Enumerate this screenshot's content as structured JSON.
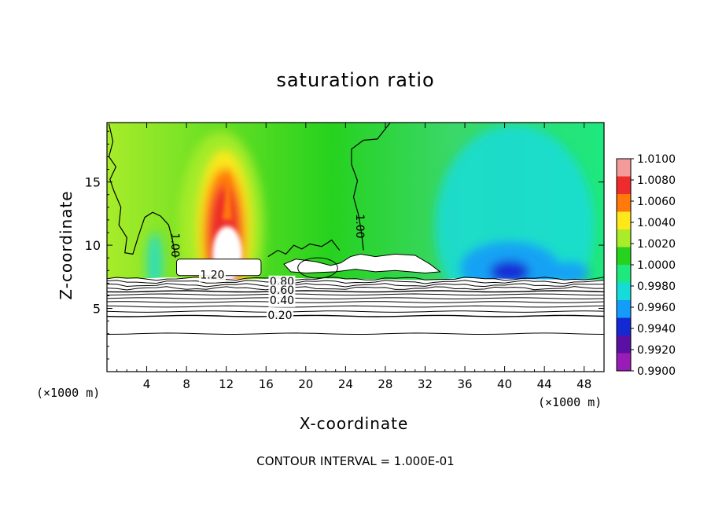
{
  "chart_data": {
    "type": "heatmap",
    "title": "saturation ratio",
    "xlabel": "X-coordinate",
    "ylabel": "Z-coordinate",
    "x_unit_label": "(×1000 m)",
    "x_ticks": [
      4,
      8,
      12,
      16,
      20,
      24,
      28,
      32,
      36,
      40,
      44,
      48
    ],
    "y_ticks": [
      5,
      10,
      15
    ],
    "xlim": [
      0,
      50
    ],
    "ylim": [
      0,
      19.7
    ],
    "footer": "CONTOUR INTERVAL = 1.000E-01",
    "colorbar": {
      "labels": [
        "1.0100",
        "1.0080",
        "1.0060",
        "1.0040",
        "1.0020",
        "1.0000",
        "0.9980",
        "0.9960",
        "0.9940",
        "0.9920",
        "0.9900"
      ],
      "colors": [
        "#f59a9a",
        "#ee2c2c",
        "#ff7a0a",
        "#ffe81a",
        "#a8ec2a",
        "#26d21e",
        "#1ee87e",
        "#16dcd8",
        "#149cfa",
        "#1428d4",
        "#5a10a2",
        "#9a1cb6"
      ]
    },
    "contour_labels": [
      {
        "text": "1.00",
        "x": 6.8,
        "y": 10.0,
        "angle": 90
      },
      {
        "text": "1.00",
        "x": 25.4,
        "y": 11.5,
        "angle": 90
      },
      {
        "text": "1.20",
        "x": 10.6,
        "y": 7.6,
        "angle": 0
      },
      {
        "text": "0.80",
        "x": 17.6,
        "y": 7.1,
        "angle": 0
      },
      {
        "text": "0.60",
        "x": 17.6,
        "y": 6.4,
        "angle": 0
      },
      {
        "text": "0.40",
        "x": 17.6,
        "y": 5.6,
        "angle": 0
      },
      {
        "text": "0.20",
        "x": 17.4,
        "y": 4.4,
        "angle": 0
      }
    ],
    "contour_levels_below": [
      7.35,
      7.1,
      6.85,
      6.6,
      6.35,
      6.1,
      5.8,
      5.5,
      5.15,
      4.75,
      4.4,
      3.0
    ],
    "features": {
      "supersaturated_column": {
        "x_range": [
          8,
          15
        ],
        "z_range": [
          8.5,
          16.2
        ],
        "peak": "1.0080"
      },
      "subsaturated_region": {
        "x_range": [
          36,
          48
        ],
        "z_range": [
          7.4,
          16
        ],
        "min": "0.9920"
      }
    }
  }
}
